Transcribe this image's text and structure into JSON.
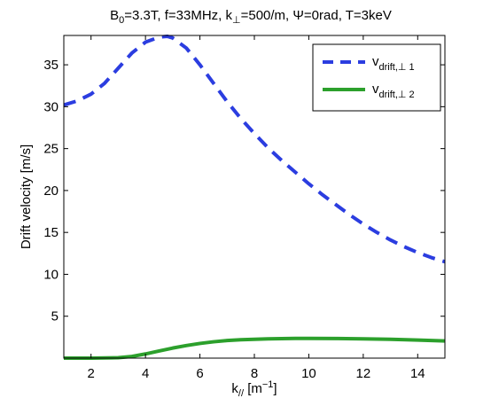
{
  "chart_data": {
    "type": "line",
    "title": {
      "b_main": "B",
      "b_sub": "0",
      "after_b": "=3.3T, f=33MHz, k",
      "k_sub": "⊥",
      "after_k": "=500/m, Ψ=0rad, T=3keV"
    },
    "xlabel": {
      "main": "k",
      "sub": "//",
      "unit_open": " [m",
      "unit_sup": "−1",
      "unit_close": "]"
    },
    "ylabel": "Drift velocity [m/s]",
    "xlim": [
      1,
      15
    ],
    "ylim": [
      0,
      38.5
    ],
    "xticks": [
      2,
      4,
      6,
      8,
      10,
      12,
      14
    ],
    "yticks": [
      5,
      10,
      15,
      20,
      25,
      30,
      35
    ],
    "grid": false,
    "legend_position": "top-right",
    "series": [
      {
        "name": {
          "main": "v",
          "sub": "drift,⊥ 1"
        },
        "color": "#2b3de0",
        "style": "dashed",
        "x": [
          1,
          1.5,
          2,
          2.5,
          3,
          3.5,
          4,
          4.5,
          4.8,
          5,
          5.5,
          6,
          6.5,
          7,
          7.5,
          8,
          8.5,
          9,
          9.5,
          10,
          10.5,
          11,
          11.5,
          12,
          12.5,
          13,
          13.5,
          14,
          14.5,
          15
        ],
        "values": [
          30.2,
          30.7,
          31.5,
          32.8,
          34.6,
          36.4,
          37.7,
          38.3,
          38.4,
          38.2,
          37.0,
          35.0,
          32.8,
          30.6,
          28.6,
          26.8,
          25.1,
          23.6,
          22.2,
          20.8,
          19.5,
          18.3,
          17.1,
          16.0,
          15.0,
          14.1,
          13.3,
          12.6,
          12.0,
          11.5
        ]
      },
      {
        "name": {
          "main": "v",
          "sub": "drift,⊥ 2"
        },
        "color": "#2ca02c",
        "style": "solid",
        "x": [
          1,
          2,
          3,
          3.5,
          4,
          4.5,
          5,
          5.5,
          6,
          6.5,
          7,
          7.5,
          8,
          8.5,
          9,
          9.5,
          10,
          11,
          12,
          13,
          14,
          15
        ],
        "values": [
          0.0,
          0.0,
          0.05,
          0.2,
          0.5,
          0.85,
          1.2,
          1.5,
          1.75,
          1.95,
          2.1,
          2.2,
          2.25,
          2.3,
          2.33,
          2.35,
          2.35,
          2.34,
          2.3,
          2.25,
          2.15,
          2.05
        ]
      }
    ]
  }
}
